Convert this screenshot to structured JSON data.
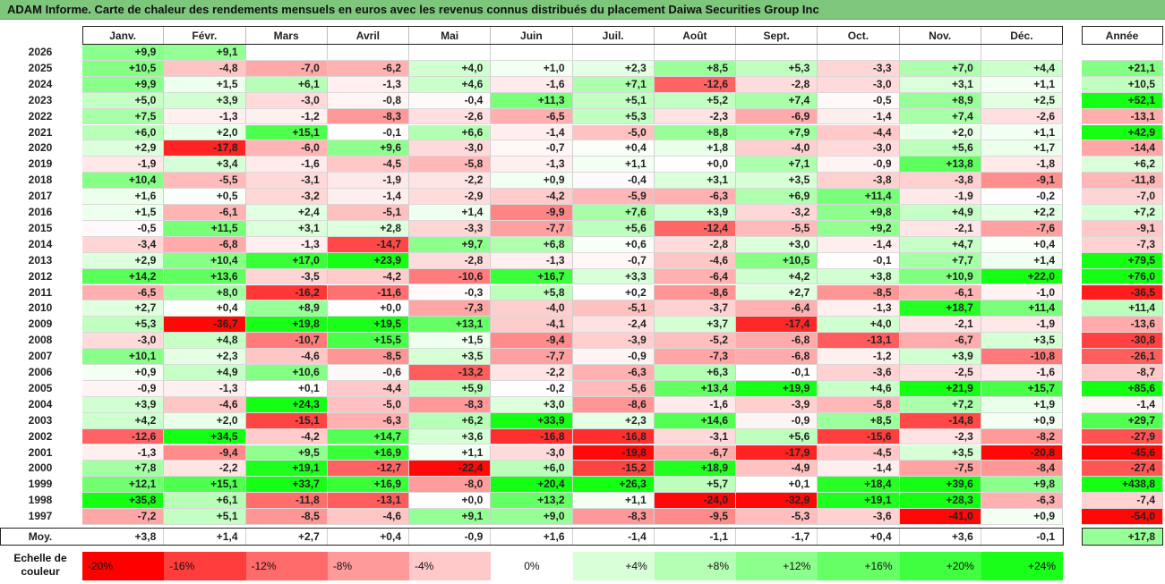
{
  "title": "ADAM Informe. Carte de chaleur des rendements mensuels en euros avec les revenus connus distribués du placement Daiwa Securities Group Inc",
  "chart_data": {
    "type": "heatmap",
    "title": "ADAM Informe. Carte de chaleur des rendements mensuels en euros avec les revenus connus distribués du placement Daiwa Securities Group Inc",
    "columns": [
      "Janv.",
      "Févr.",
      "Mars",
      "Avril",
      "Mai",
      "Juin",
      "Juil.",
      "Août",
      "Sept.",
      "Oct.",
      "Nov.",
      "Déc."
    ],
    "annual_column": "Année",
    "rows": [
      {
        "year": "2026",
        "values": [
          9.9,
          9.1,
          null,
          null,
          null,
          null,
          null,
          null,
          null,
          null,
          null,
          null
        ],
        "annual": null
      },
      {
        "year": "2025",
        "values": [
          10.5,
          -4.8,
          -7.0,
          -6.2,
          4.0,
          1.0,
          2.3,
          8.5,
          5.3,
          -3.3,
          7.0,
          4.4
        ],
        "annual": 21.1
      },
      {
        "year": "2024",
        "values": [
          9.9,
          1.5,
          6.1,
          -1.3,
          4.6,
          -1.6,
          7.1,
          -12.6,
          -2.8,
          -3.0,
          3.1,
          1.1
        ],
        "annual": 10.5
      },
      {
        "year": "2023",
        "values": [
          5.0,
          3.9,
          -3.0,
          -0.8,
          -0.4,
          11.3,
          5.1,
          5.2,
          7.4,
          -0.5,
          8.9,
          2.5
        ],
        "annual": 52.1
      },
      {
        "year": "2022",
        "values": [
          7.5,
          -1.3,
          -1.2,
          -8.3,
          -2.6,
          -6.5,
          5.3,
          -2.3,
          -6.9,
          -1.4,
          7.4,
          -2.6
        ],
        "annual": -13.1
      },
      {
        "year": "2021",
        "values": [
          6.0,
          2.0,
          15.1,
          -0.1,
          6.6,
          -1.4,
          -5.0,
          8.8,
          7.9,
          -4.4,
          2.0,
          1.1
        ],
        "annual": 42.9
      },
      {
        "year": "2020",
        "values": [
          2.9,
          -17.8,
          -6.0,
          9.6,
          -3.0,
          -0.7,
          0.4,
          1.8,
          -4.0,
          -3.0,
          5.6,
          1.7
        ],
        "annual": -14.4
      },
      {
        "year": "2019",
        "values": [
          -1.9,
          3.4,
          -1.6,
          -4.5,
          -5.8,
          -1.3,
          1.1,
          0.0,
          7.1,
          -0.9,
          13.8,
          -1.8
        ],
        "annual": 6.2
      },
      {
        "year": "2018",
        "values": [
          10.4,
          -5.5,
          -3.1,
          -1.9,
          -2.2,
          0.9,
          -0.4,
          3.1,
          3.5,
          -3.8,
          -3.8,
          -9.1
        ],
        "annual": -11.8
      },
      {
        "year": "2017",
        "values": [
          1.6,
          0.5,
          -3.2,
          -1.4,
          -2.9,
          -4.2,
          -5.9,
          -6.3,
          6.9,
          11.4,
          -1.9,
          -0.2
        ],
        "annual": -7.0
      },
      {
        "year": "2016",
        "values": [
          1.5,
          -6.1,
          2.4,
          -5.1,
          1.4,
          -9.9,
          7.6,
          3.9,
          -3.2,
          9.8,
          4.9,
          2.2
        ],
        "annual": 7.2
      },
      {
        "year": "2015",
        "values": [
          -0.5,
          11.5,
          3.1,
          2.8,
          -3.3,
          -7.7,
          5.6,
          -12.4,
          -5.5,
          9.2,
          -2.1,
          -7.6
        ],
        "annual": -9.1
      },
      {
        "year": "2014",
        "values": [
          -3.4,
          -6.8,
          -1.3,
          -14.7,
          9.7,
          6.8,
          0.6,
          -2.8,
          3.0,
          -1.4,
          4.7,
          0.4
        ],
        "annual": -7.3
      },
      {
        "year": "2013",
        "values": [
          2.9,
          10.4,
          17.0,
          23.9,
          -2.8,
          -1.3,
          -0.7,
          -4.6,
          10.5,
          -0.1,
          7.7,
          1.4
        ],
        "annual": 79.5
      },
      {
        "year": "2012",
        "values": [
          14.2,
          13.6,
          -3.5,
          -4.2,
          -10.6,
          16.7,
          3.3,
          -6.4,
          4.2,
          3.8,
          10.9,
          22.0
        ],
        "annual": 76.0
      },
      {
        "year": "2011",
        "values": [
          -6.5,
          8.0,
          -16.2,
          -11.6,
          -0.3,
          5.8,
          0.2,
          -8.6,
          2.7,
          -8.5,
          -6.1,
          -1.0
        ],
        "annual": -36.5
      },
      {
        "year": "2010",
        "values": [
          2.7,
          0.4,
          8.9,
          0.0,
          -7.3,
          -4.0,
          -5.1,
          -3.7,
          -6.4,
          -1.3,
          18.7,
          11.4
        ],
        "annual": 11.4
      },
      {
        "year": "2009",
        "values": [
          5.3,
          -36.7,
          19.8,
          19.5,
          13.1,
          -4.1,
          -2.4,
          3.7,
          -17.4,
          4.0,
          -2.1,
          -1.9
        ],
        "annual": -13.6
      },
      {
        "year": "2008",
        "values": [
          -3.0,
          4.8,
          -10.7,
          15.5,
          1.5,
          -9.4,
          -3.9,
          -5.2,
          -6.8,
          -13.1,
          -6.7,
          3.5
        ],
        "annual": -30.8
      },
      {
        "year": "2007",
        "values": [
          10.1,
          2.3,
          -4.6,
          -8.5,
          3.5,
          -7.7,
          -0.9,
          -7.3,
          -6.8,
          -1.2,
          3.9,
          -10.8
        ],
        "annual": -26.1
      },
      {
        "year": "2006",
        "values": [
          0.9,
          4.9,
          10.6,
          -0.6,
          -13.2,
          -2.2,
          -6.3,
          6.3,
          -0.1,
          -3.6,
          -2.5,
          -1.6
        ],
        "annual": -8.7
      },
      {
        "year": "2005",
        "values": [
          -0.9,
          -1.3,
          0.1,
          -4.4,
          5.9,
          -0.2,
          -5.6,
          13.4,
          19.9,
          4.6,
          21.9,
          15.7
        ],
        "annual": 85.6
      },
      {
        "year": "2004",
        "values": [
          3.9,
          -4.6,
          24.3,
          -5.0,
          -8.3,
          3.0,
          -8.6,
          -1.6,
          -3.9,
          -5.8,
          7.2,
          1.9
        ],
        "annual": -1.4
      },
      {
        "year": "2003",
        "values": [
          4.2,
          2.0,
          -15.1,
          -6.3,
          6.2,
          33.9,
          2.3,
          14.6,
          -0.9,
          8.5,
          -14.8,
          0.9
        ],
        "annual": 29.7
      },
      {
        "year": "2002",
        "values": [
          -12.6,
          34.5,
          -4.2,
          14.7,
          3.6,
          -16.8,
          -16.8,
          -3.1,
          5.6,
          -15.6,
          -2.3,
          -8.2
        ],
        "annual": -27.9
      },
      {
        "year": "2001",
        "values": [
          -1.3,
          -9.4,
          9.5,
          16.9,
          1.1,
          -3.0,
          -19.8,
          -6.7,
          -17.9,
          -4.5,
          3.5,
          -20.8
        ],
        "annual": -45.6
      },
      {
        "year": "2000",
        "values": [
          7.8,
          -2.2,
          19.1,
          -12.7,
          -22.4,
          6.0,
          -15.2,
          18.9,
          -4.9,
          -1.4,
          -7.5,
          -8.4
        ],
        "annual": -27.4
      },
      {
        "year": "1999",
        "values": [
          12.1,
          15.1,
          33.7,
          16.9,
          -8.0,
          20.4,
          26.3,
          5.7,
          0.1,
          18.4,
          39.6,
          9.8
        ],
        "annual": 438.8
      },
      {
        "year": "1998",
        "values": [
          35.8,
          6.1,
          -11.8,
          -13.1,
          0.0,
          13.2,
          1.1,
          -24.0,
          -32.9,
          19.1,
          28.3,
          -6.3
        ],
        "annual": -7.4
      },
      {
        "year": "1997",
        "values": [
          -7.2,
          5.1,
          -8.5,
          -4.6,
          9.1,
          9.0,
          -8.3,
          -9.5,
          -5.3,
          -3.6,
          -41.0,
          0.9
        ],
        "annual": -54.0
      }
    ],
    "average_label": "Moy.",
    "averages": [
      3.8,
      1.4,
      2.7,
      0.4,
      -0.9,
      1.6,
      -1.4,
      -1.1,
      -1.7,
      0.4,
      3.6,
      -0.1
    ],
    "average_annual": 17.8,
    "color_scale": {
      "label": "Echelle de couleur",
      "steps": [
        {
          "label": "-20%",
          "value": -20,
          "color": "#ff0000"
        },
        {
          "label": "-16%",
          "value": -16,
          "color": "#ff3d3d"
        },
        {
          "label": "-12%",
          "value": -12,
          "color": "#ff6b6b"
        },
        {
          "label": "-8%",
          "value": -8,
          "color": "#ff9a9a"
        },
        {
          "label": "-4%",
          "value": -4,
          "color": "#ffc9c9"
        },
        {
          "label": "0%",
          "value": 0,
          "color": "#ffffff"
        },
        {
          "label": "+4%",
          "value": 4,
          "color": "#d9ffd9"
        },
        {
          "label": "+8%",
          "value": 8,
          "color": "#b3ffb3"
        },
        {
          "label": "+12%",
          "value": 12,
          "color": "#8cff8c"
        },
        {
          "label": "+16%",
          "value": 16,
          "color": "#66ff66"
        },
        {
          "label": "+20%",
          "value": 20,
          "color": "#40ff40"
        },
        {
          "label": "+24%",
          "value": 24,
          "color": "#1aff1a"
        }
      ]
    }
  }
}
